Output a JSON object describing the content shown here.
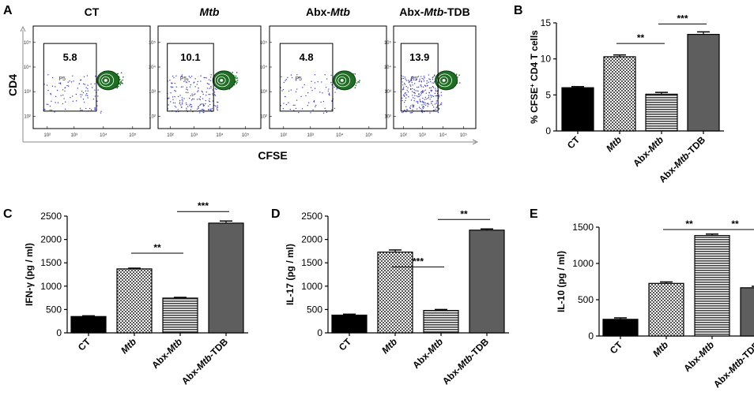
{
  "colors": {
    "ink": "#000000",
    "dot": "#3b3bd6",
    "contour": "#0e6b1a",
    "dark": "#222222",
    "mid": "#5a5a5a"
  },
  "panel_labels": [
    "A",
    "B",
    "C",
    "D",
    "E"
  ],
  "flow": {
    "y_label": "CD4",
    "x_label": "CFSE",
    "gate_label": "P5",
    "tick_labels": [
      "10²",
      "10³",
      "10⁴",
      "10⁵"
    ],
    "plots": [
      {
        "title": "CT",
        "title_italic_part": "",
        "title_suffix": "",
        "percent": "5.8"
      },
      {
        "title": "",
        "title_italic_part": "Mtb",
        "title_suffix": "",
        "percent": "10.1"
      },
      {
        "title": "Abx-",
        "title_italic_part": "Mtb",
        "title_suffix": "",
        "percent": "4.8"
      },
      {
        "title": "Abx-",
        "title_italic_part": "Mtb",
        "title_suffix": "-TDB",
        "percent": "13.9"
      }
    ]
  },
  "chart_data": [
    {
      "panel": "B",
      "type": "bar",
      "categories": [
        "CT",
        "Mtb",
        "Abx-Mtb",
        "Abx-Mtb-TDB"
      ],
      "values": [
        6.0,
        10.3,
        5.1,
        13.4
      ],
      "errors": [
        0.15,
        0.25,
        0.25,
        0.35
      ],
      "ylabel": "% CFSE+ CD4 T cells",
      "ylim": [
        0,
        15
      ],
      "yticks": [
        "0",
        "5",
        "10",
        "15"
      ],
      "significance": [
        {
          "from": 1,
          "to": 2,
          "label": "**"
        },
        {
          "from": 2,
          "to": 3,
          "label": "***"
        }
      ]
    },
    {
      "panel": "C",
      "type": "bar",
      "categories": [
        "CT",
        "Mtb",
        "Abx-Mtb",
        "Abx-Mtb-TDB"
      ],
      "values": [
        350,
        1370,
        745,
        2350
      ],
      "errors": [
        15,
        15,
        15,
        45
      ],
      "ylabel": "IFN-γ (pg / ml)",
      "ylim": [
        0,
        2500
      ],
      "yticks": [
        "0",
        "500",
        "1000",
        "1500",
        "2000",
        "2500"
      ],
      "significance": [
        {
          "from": 1,
          "to": 2,
          "label": "**"
        },
        {
          "from": 2,
          "to": 3,
          "label": "***"
        }
      ]
    },
    {
      "panel": "D",
      "type": "bar",
      "categories": [
        "CT",
        "Mtb",
        "Abx-Mtb",
        "Abx-Mtb-TDB"
      ],
      "values": [
        380,
        1730,
        480,
        2200
      ],
      "errors": [
        20,
        45,
        20,
        25
      ],
      "ylabel": "IL-17 (pg / ml)",
      "ylim": [
        0,
        2500
      ],
      "yticks": [
        "0",
        "500",
        "1000",
        "1500",
        "2000",
        "2500"
      ],
      "significance": [
        {
          "from": 1,
          "to": 2,
          "label": "***"
        },
        {
          "from": 2,
          "to": 3,
          "label": "**"
        }
      ]
    },
    {
      "panel": "E",
      "type": "bar",
      "categories": [
        "CT",
        "Mtb",
        "Abx-Mtb",
        "Abx-Mtb-TDB"
      ],
      "values": [
        230,
        725,
        1385,
        665
      ],
      "errors": [
        20,
        20,
        20,
        20
      ],
      "ylabel": "IL-10 (pg / ml)",
      "ylim": [
        0,
        1500
      ],
      "yticks": [
        "0",
        "500",
        "1000",
        "1500"
      ],
      "significance": [
        {
          "from": 1,
          "to": 2,
          "label": "**"
        },
        {
          "from": 2,
          "to": 3,
          "label": "**"
        }
      ]
    }
  ]
}
